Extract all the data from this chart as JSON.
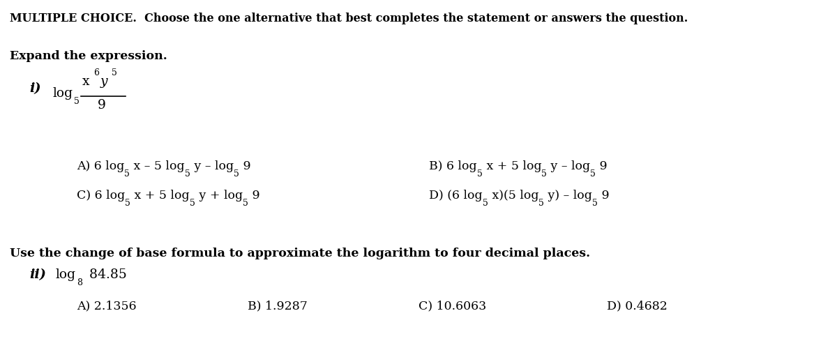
{
  "bg_color": "#ffffff",
  "fig_width": 12.0,
  "fig_height": 5.22,
  "dpi": 100,
  "header": "MULTIPLE CHOICE.  Choose the one alternative that best completes the statement or answers the question.",
  "section1_label": "Expand the expression.",
  "section2_label": "Use the change of base formula to approximate the logarithm to four decimal places.",
  "q2_A": "A) 2.1356",
  "q2_B": "B) 1.9287",
  "q2_C": "C) 10.6063",
  "q2_D": "D) 0.4682",
  "font_family": "DejaVu Serif",
  "text_color": "#000000",
  "fs_header": 11.5,
  "fs_section": 12.5,
  "fs_body": 12.5,
  "fs_q": 13.5,
  "fs_sub": 9.0,
  "fs_ans": 12.5
}
